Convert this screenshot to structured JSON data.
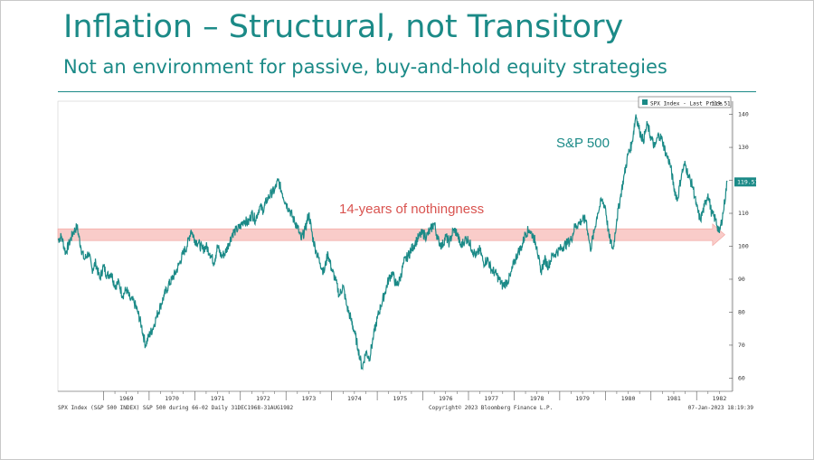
{
  "slide": {
    "title": "Inflation – Structural, not Transitory",
    "subtitle": "Not an environment for passive, buy-and-hold equity strategies"
  },
  "chart_data": {
    "type": "line",
    "title": "",
    "legend_label": "SPX Index - Last Price",
    "legend_value": "119.51",
    "last_value": 119.51,
    "series_label": "S&P 500",
    "annotation": "14-years of nothingness",
    "band_level": 103.5,
    "ylim": [
      56,
      144
    ],
    "y_ticks": [
      60,
      70,
      80,
      90,
      100,
      110,
      120,
      130,
      140
    ],
    "x_range": [
      1968.0,
      1982.67
    ],
    "x_tick_labels": [
      "1969",
      "1970",
      "1971",
      "1972",
      "1973",
      "1974",
      "1975",
      "1976",
      "1977",
      "1978",
      "1979",
      "1980",
      "1981",
      "1982"
    ],
    "footer_left": "SPX Index (S&P 500 INDEX) S&P 500 during 66-02  Daily 31DEC1968-31AUG1982",
    "footer_center": "Copyright© 2023 Bloomberg Finance L.P.",
    "footer_right": "07-Jan-2023 18:19:39",
    "series": [
      {
        "name": "SPX Index - Last Price",
        "color": "#1b8a87",
        "points": [
          [
            1968.0,
            102
          ],
          [
            1968.08,
            103
          ],
          [
            1968.17,
            98
          ],
          [
            1968.25,
            101
          ],
          [
            1968.33,
            104
          ],
          [
            1968.42,
            106
          ],
          [
            1968.5,
            100
          ],
          [
            1968.58,
            96
          ],
          [
            1968.67,
            98
          ],
          [
            1968.75,
            93
          ],
          [
            1968.83,
            95
          ],
          [
            1968.92,
            90
          ],
          [
            1969.0,
            94
          ],
          [
            1969.08,
            91
          ],
          [
            1969.17,
            92
          ],
          [
            1969.25,
            88
          ],
          [
            1969.33,
            89
          ],
          [
            1969.42,
            85
          ],
          [
            1969.5,
            87
          ],
          [
            1969.58,
            84
          ],
          [
            1969.67,
            83
          ],
          [
            1969.75,
            80
          ],
          [
            1969.83,
            76
          ],
          [
            1969.92,
            70
          ],
          [
            1970.0,
            73
          ],
          [
            1970.08,
            75
          ],
          [
            1970.17,
            79
          ],
          [
            1970.25,
            82
          ],
          [
            1970.33,
            85
          ],
          [
            1970.42,
            88
          ],
          [
            1970.5,
            90
          ],
          [
            1970.58,
            92
          ],
          [
            1970.67,
            95
          ],
          [
            1970.75,
            98
          ],
          [
            1970.83,
            100
          ],
          [
            1970.92,
            105
          ],
          [
            1971.0,
            102
          ],
          [
            1971.08,
            101
          ],
          [
            1971.17,
            99
          ],
          [
            1971.25,
            100
          ],
          [
            1971.33,
            98
          ],
          [
            1971.42,
            95
          ],
          [
            1971.5,
            100
          ],
          [
            1971.58,
            97
          ],
          [
            1971.67,
            98
          ],
          [
            1971.75,
            101
          ],
          [
            1971.83,
            104
          ],
          [
            1971.92,
            105
          ],
          [
            1972.0,
            106
          ],
          [
            1972.08,
            108
          ],
          [
            1972.17,
            107
          ],
          [
            1972.25,
            110
          ],
          [
            1972.33,
            108
          ],
          [
            1972.42,
            112
          ],
          [
            1972.5,
            111
          ],
          [
            1972.58,
            114
          ],
          [
            1972.67,
            116
          ],
          [
            1972.75,
            117
          ],
          [
            1972.83,
            120
          ],
          [
            1972.92,
            116
          ],
          [
            1973.0,
            113
          ],
          [
            1973.08,
            111
          ],
          [
            1973.17,
            108
          ],
          [
            1973.25,
            106
          ],
          [
            1973.33,
            102
          ],
          [
            1973.42,
            105
          ],
          [
            1973.5,
            110
          ],
          [
            1973.58,
            103
          ],
          [
            1973.67,
            98
          ],
          [
            1973.75,
            95
          ],
          [
            1973.83,
            92
          ],
          [
            1973.92,
            98
          ],
          [
            1974.0,
            93
          ],
          [
            1974.08,
            90
          ],
          [
            1974.17,
            85
          ],
          [
            1974.25,
            88
          ],
          [
            1974.33,
            82
          ],
          [
            1974.42,
            78
          ],
          [
            1974.5,
            74
          ],
          [
            1974.58,
            69
          ],
          [
            1974.67,
            63
          ],
          [
            1974.75,
            68
          ],
          [
            1974.83,
            66
          ],
          [
            1974.92,
            73
          ],
          [
            1975.0,
            78
          ],
          [
            1975.08,
            82
          ],
          [
            1975.17,
            86
          ],
          [
            1975.25,
            90
          ],
          [
            1975.33,
            92
          ],
          [
            1975.42,
            88
          ],
          [
            1975.5,
            90
          ],
          [
            1975.58,
            95
          ],
          [
            1975.67,
            97
          ],
          [
            1975.75,
            99
          ],
          [
            1975.83,
            101
          ],
          [
            1975.92,
            103
          ],
          [
            1976.0,
            104
          ],
          [
            1976.08,
            103
          ],
          [
            1976.17,
            105
          ],
          [
            1976.25,
            107
          ],
          [
            1976.33,
            102
          ],
          [
            1976.42,
            100
          ],
          [
            1976.5,
            103
          ],
          [
            1976.58,
            101
          ],
          [
            1976.67,
            105
          ],
          [
            1976.75,
            104
          ],
          [
            1976.83,
            100
          ],
          [
            1976.92,
            102
          ],
          [
            1977.0,
            102
          ],
          [
            1977.08,
            99
          ],
          [
            1977.17,
            97
          ],
          [
            1977.25,
            99
          ],
          [
            1977.33,
            95
          ],
          [
            1977.42,
            96
          ],
          [
            1977.5,
            93
          ],
          [
            1977.58,
            92
          ],
          [
            1977.67,
            90
          ],
          [
            1977.75,
            88
          ],
          [
            1977.83,
            89
          ],
          [
            1977.92,
            91
          ],
          [
            1978.0,
            95
          ],
          [
            1978.08,
            98
          ],
          [
            1978.17,
            100
          ],
          [
            1978.25,
            104
          ],
          [
            1978.33,
            105
          ],
          [
            1978.42,
            103
          ],
          [
            1978.5,
            100
          ],
          [
            1978.58,
            92
          ],
          [
            1978.67,
            96
          ],
          [
            1978.75,
            94
          ],
          [
            1978.83,
            97
          ],
          [
            1978.92,
            98
          ],
          [
            1979.0,
            99
          ],
          [
            1979.08,
            100
          ],
          [
            1979.17,
            101
          ],
          [
            1979.25,
            102
          ],
          [
            1979.33,
            106
          ],
          [
            1979.42,
            107
          ],
          [
            1979.5,
            108
          ],
          [
            1979.58,
            108
          ],
          [
            1979.67,
            99
          ],
          [
            1979.75,
            104
          ],
          [
            1979.83,
            110
          ],
          [
            1979.92,
            114
          ],
          [
            1980.0,
            112
          ],
          [
            1980.08,
            103
          ],
          [
            1980.17,
            99
          ],
          [
            1980.25,
            108
          ],
          [
            1980.33,
            115
          ],
          [
            1980.42,
            122
          ],
          [
            1980.5,
            128
          ],
          [
            1980.58,
            131
          ],
          [
            1980.67,
            140
          ],
          [
            1980.75,
            135
          ],
          [
            1980.83,
            132
          ],
          [
            1980.92,
            137
          ],
          [
            1981.0,
            133
          ],
          [
            1981.08,
            130
          ],
          [
            1981.17,
            134
          ],
          [
            1981.25,
            132
          ],
          [
            1981.33,
            128
          ],
          [
            1981.42,
            125
          ],
          [
            1981.5,
            118
          ],
          [
            1981.58,
            114
          ],
          [
            1981.67,
            122
          ],
          [
            1981.75,
            125
          ],
          [
            1981.83,
            121
          ],
          [
            1981.92,
            118
          ],
          [
            1982.0,
            112
          ],
          [
            1982.08,
            108
          ],
          [
            1982.17,
            112
          ],
          [
            1982.25,
            116
          ],
          [
            1982.33,
            110
          ],
          [
            1982.42,
            108
          ],
          [
            1982.5,
            104
          ],
          [
            1982.58,
            110
          ],
          [
            1982.67,
            119.51
          ]
        ]
      }
    ]
  }
}
